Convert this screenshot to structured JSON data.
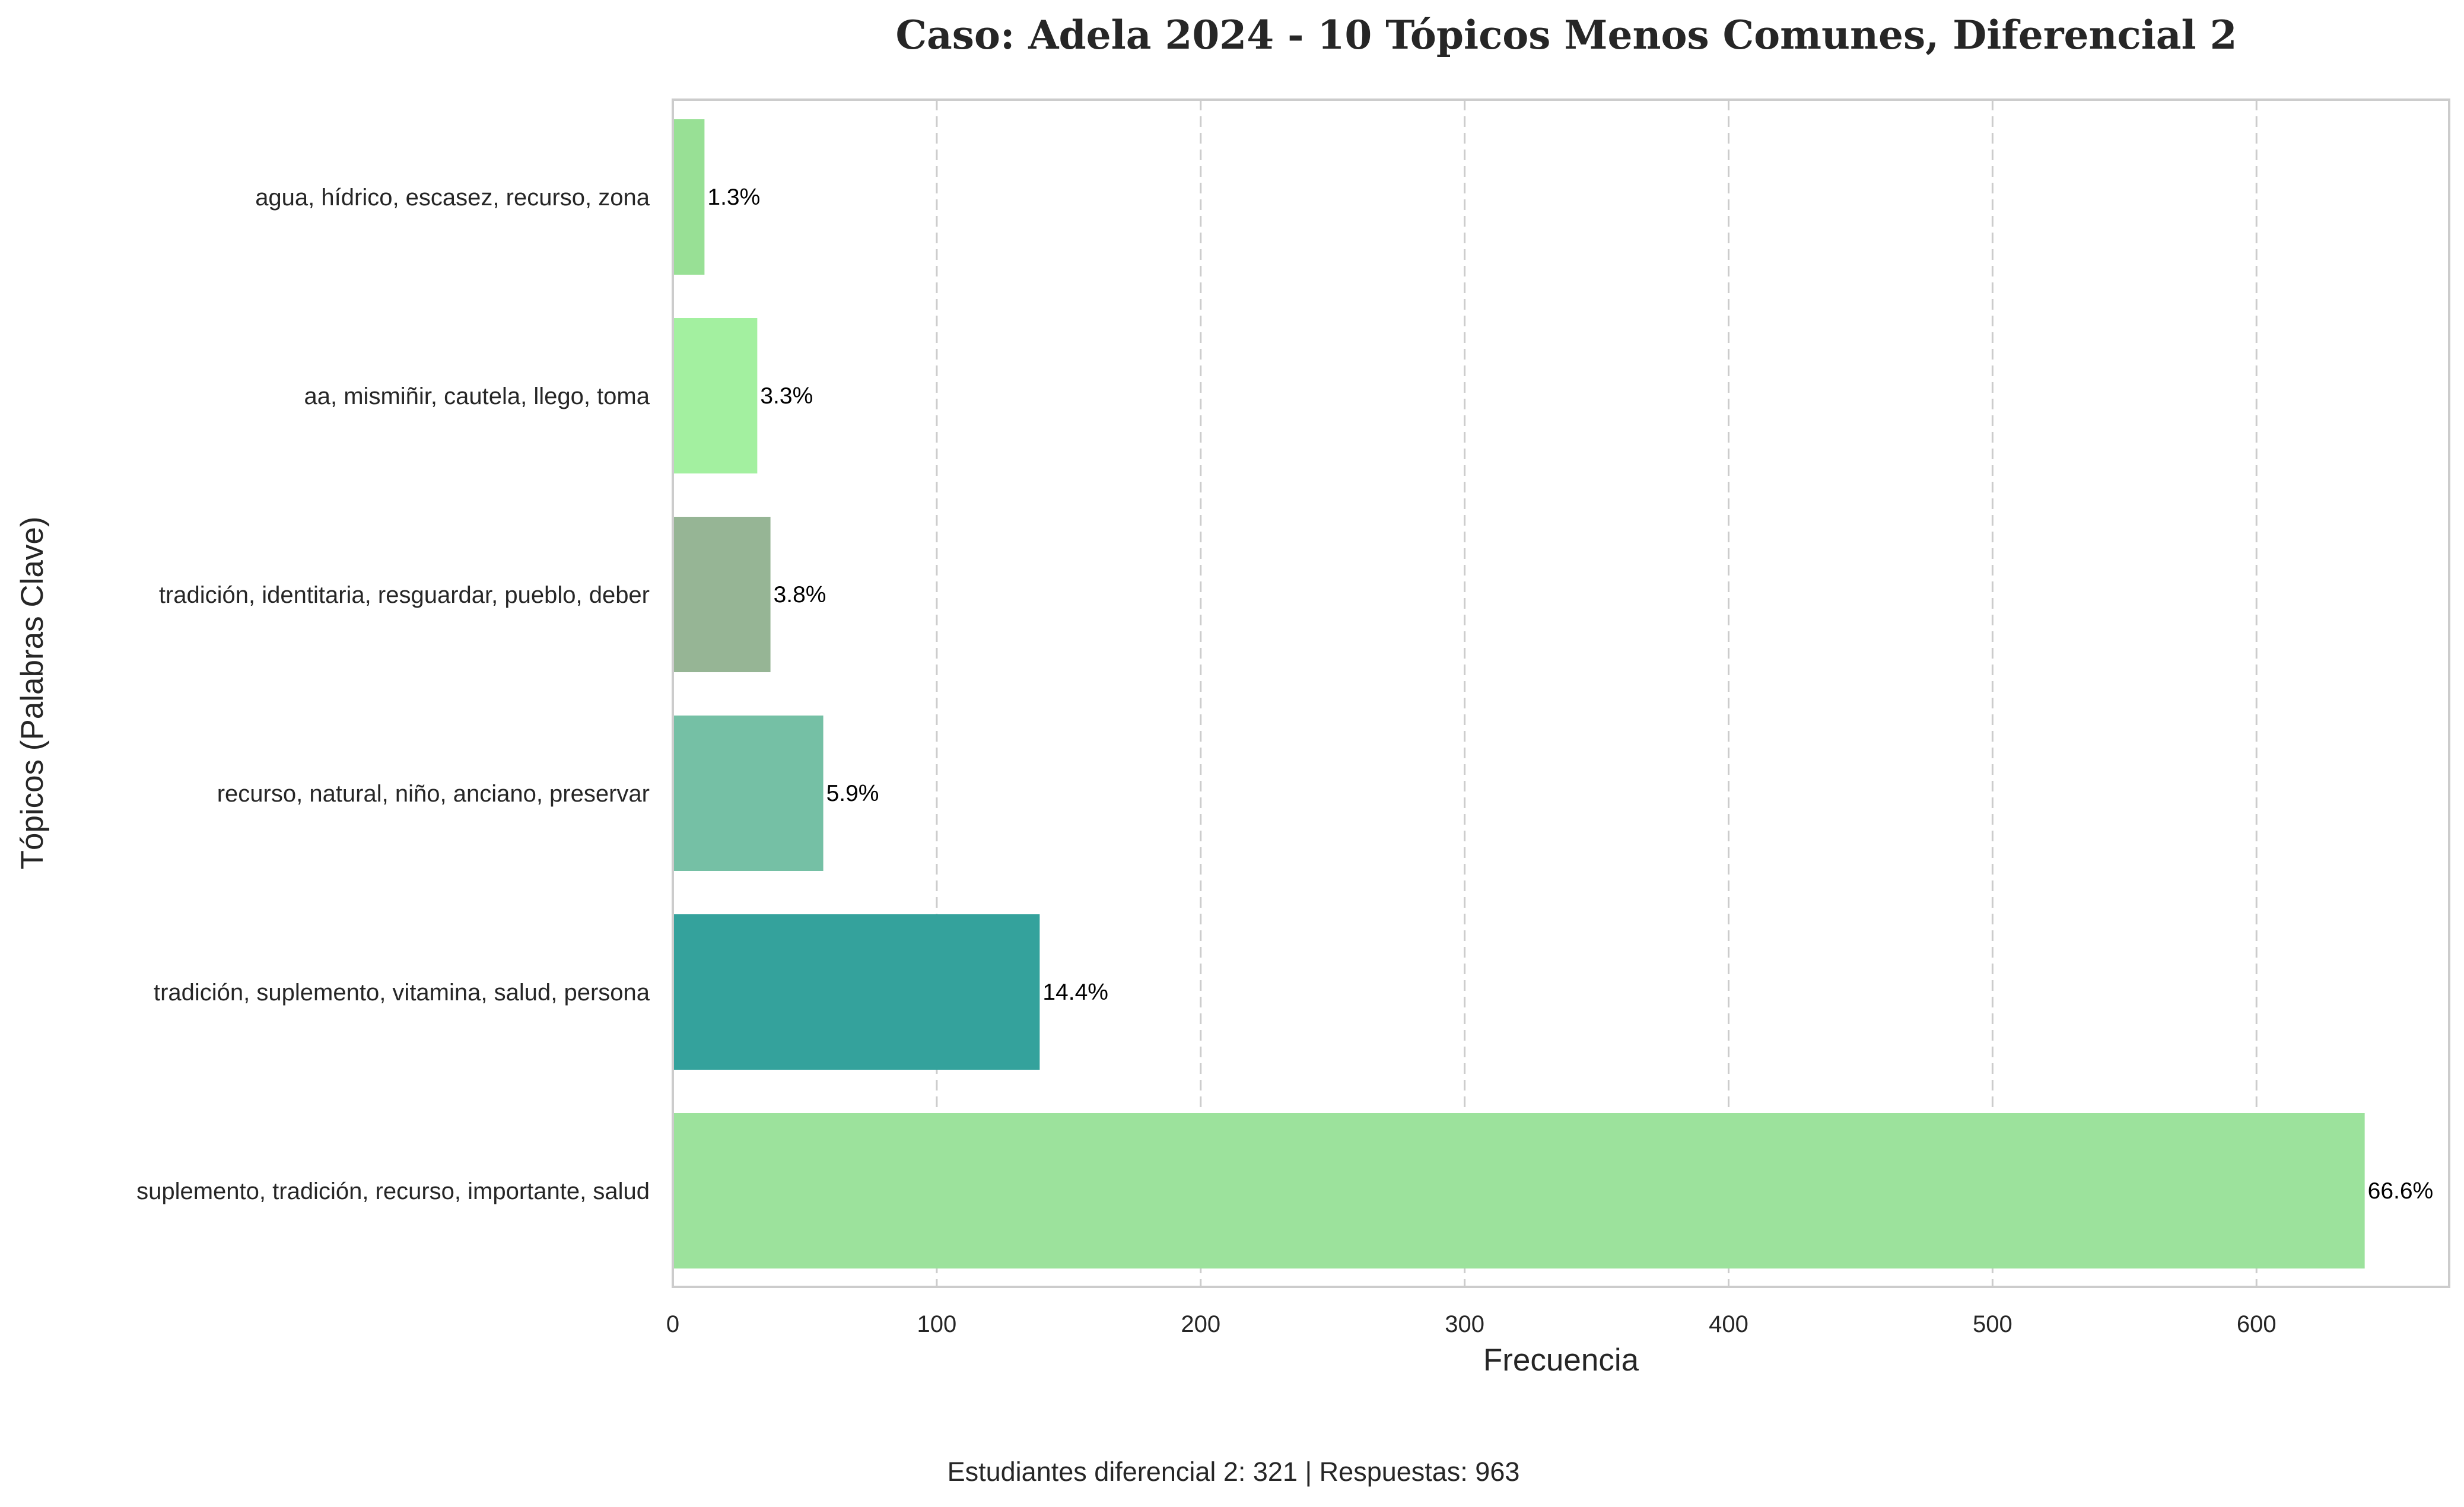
{
  "chart_data": {
    "type": "bar",
    "orientation": "horizontal",
    "title": "Caso: Adela 2024 - 10 Tópicos Menos Comunes, Diferencial 2",
    "xlabel": "Frecuencia",
    "ylabel": "Tópicos (Palabras Clave)",
    "categories": [
      "agua, hídrico, escasez, recurso, zona",
      "aa, mismiñir, cautela, llego, toma",
      "tradición, identitaria, resguardar, pueblo, deber",
      "recurso, natural, niño, anciano, preservar",
      "tradición, suplemento, vitamina, salud, persona",
      "suplemento, tradición, recurso, importante, salud"
    ],
    "values": [
      12,
      32,
      37,
      57,
      139,
      641
    ],
    "bar_labels": [
      "1.3%",
      "3.3%",
      "3.8%",
      "5.9%",
      "14.4%",
      "66.6%"
    ],
    "colors": [
      "#98e095",
      "#a3f0a0",
      "#96b595",
      "#75c0a5",
      "#34a29c",
      "#9ce29c"
    ],
    "xlim": [
      0,
      673
    ],
    "xticks": [
      0,
      100,
      200,
      300,
      400,
      500,
      600
    ],
    "grid": {
      "x": true,
      "y": false,
      "style": "dashed"
    },
    "legend": "none",
    "footnote": "Estudiantes diferencial 2: 321 | Respuestas: 963"
  }
}
